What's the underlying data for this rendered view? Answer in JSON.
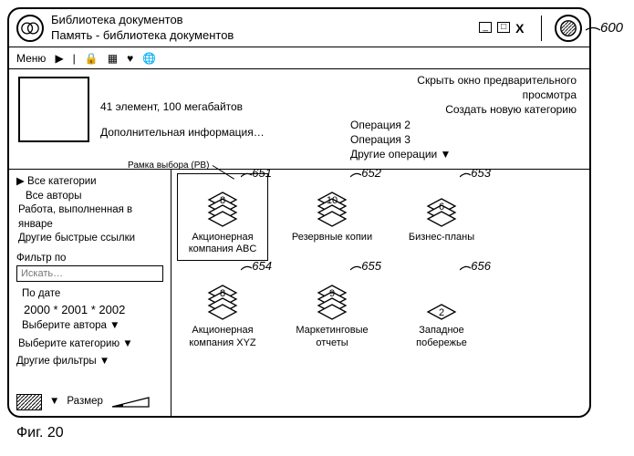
{
  "window": {
    "title1": "Библиотека документов",
    "title2": "Память - библиотека документов",
    "min": "_",
    "max": "□",
    "close": "X"
  },
  "toolbar": {
    "menu": "Меню",
    "icons": {
      "play": "▶",
      "sep": "|",
      "lock": "🔒",
      "grid": "▦",
      "heart": "♥",
      "globe": "🌐"
    }
  },
  "info": {
    "summary": "41 элемент, 100 мегабайтов",
    "more": "Дополнительная информация…",
    "hide_preview": "Скрыть окно предварительного просмотра",
    "create_cat": "Создать новую категорию",
    "op2": "Операция 2",
    "op3": "Операция 3",
    "other_ops": "Другие операции ▼"
  },
  "sidebar": {
    "all_cats": "Все категории",
    "all_authors": "Все авторы",
    "jan_work": "Работа, выполненная в январе",
    "quick_links": "Другие быстрые ссылки",
    "filter_by": "Фильтр по",
    "search_ph": "Искать…",
    "by_date": "По дате",
    "dates": "2000 * 2001 * 2002",
    "pick_author": "Выберите автора ▼",
    "pick_cat": "Выберите категорию ▼",
    "other_filters": "Другие фильтры ▼",
    "size": "Размер",
    "pv_label": "Рамка выбора (РВ)"
  },
  "items": [
    {
      "count": 8,
      "label": "Акционерная компания ABC",
      "num": "651",
      "layers": 4,
      "selected": true
    },
    {
      "count": 10,
      "label": "Резервные копии",
      "num": "652",
      "layers": 4
    },
    {
      "count": 6,
      "label": "Бизнес-планы",
      "num": "653",
      "layers": 3
    },
    {
      "count": 8,
      "label": "Акционерная компания XYZ",
      "num": "654",
      "layers": 4
    },
    {
      "count": 9,
      "label": "Маркетинговые отчеты",
      "num": "655",
      "layers": 4
    },
    {
      "count": 2,
      "label": "Западное побережье",
      "num": "656",
      "layers": 1
    }
  ],
  "outer": {
    "num": "600",
    "fig": "Фиг. 20"
  }
}
